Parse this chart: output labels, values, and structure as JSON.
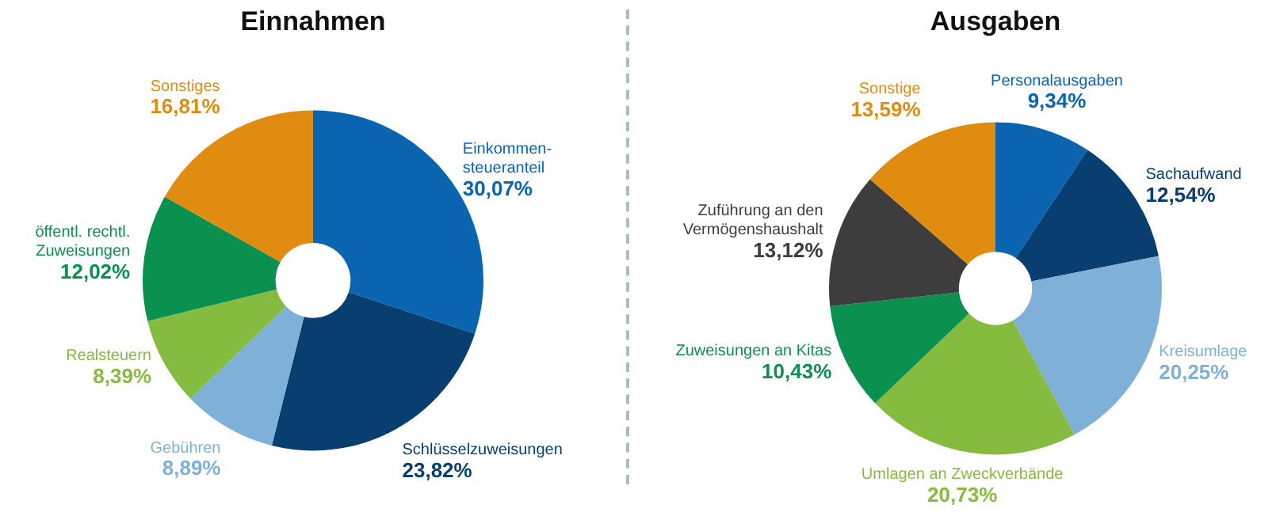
{
  "chart_data": [
    {
      "type": "donut",
      "title": "Einnahmen",
      "categories": [
        "Einkommen-\nsteueranteil",
        "Schlüsselzuweisungen",
        "Gebühren",
        "Realsteuern",
        "öffentl. rechtl.\nZuweisungen",
        "Sonstiges"
      ],
      "values": [
        30.07,
        23.82,
        8.89,
        8.39,
        12.02,
        16.81
      ],
      "value_labels": [
        "30,07%",
        "23,82%",
        "8,89%",
        "8,39%",
        "12,02%",
        "16,81%"
      ],
      "colors": [
        "#0a64b0",
        "#083f70",
        "#7fb0d8",
        "#85bb3f",
        "#0a9150",
        "#e08c10"
      ],
      "legend": false
    },
    {
      "type": "donut",
      "title": "Ausgaben",
      "categories": [
        "Personalausgaben",
        "Sachaufwand",
        "Kreisumlage",
        "Umlagen an Zweckverbände",
        "Zuweisungen an Kitas",
        "Zuführung an den\nVermögenshaushalt",
        "Sonstige"
      ],
      "values": [
        9.34,
        12.54,
        20.25,
        20.73,
        10.43,
        13.12,
        13.59
      ],
      "value_labels": [
        "9,34%",
        "12,54%",
        "20,25%",
        "20,73%",
        "10,43%",
        "13,12%",
        "13,59%"
      ],
      "colors": [
        "#0a64b0",
        "#083f70",
        "#7fb0d8",
        "#85bb3f",
        "#0a9150",
        "#3d3d3d",
        "#e08c10"
      ],
      "legend": false
    }
  ]
}
